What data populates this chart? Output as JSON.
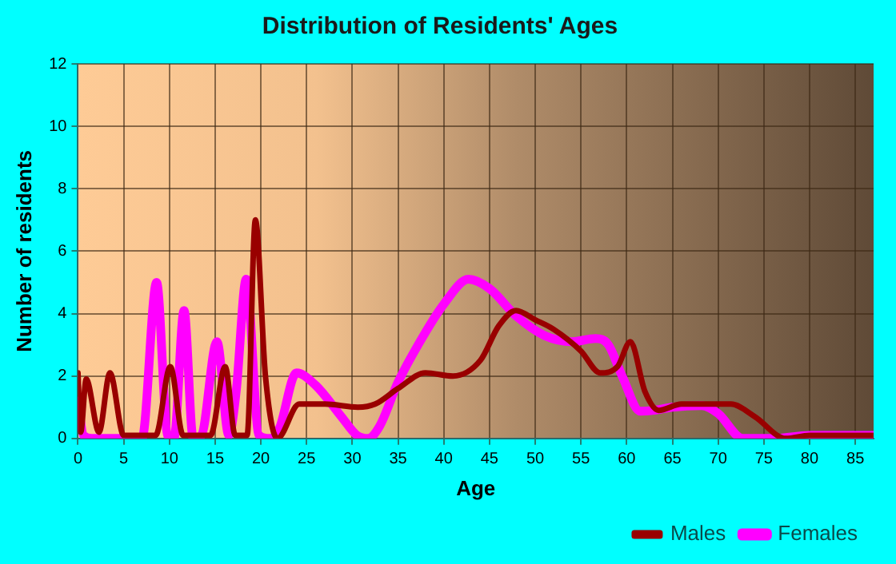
{
  "chart_data": {
    "type": "line",
    "title": "Distribution of Residents' Ages",
    "xlabel": "Age",
    "ylabel": "Number of residents",
    "xlim": [
      0,
      87
    ],
    "xticks": [
      0,
      5,
      10,
      15,
      20,
      25,
      30,
      35,
      40,
      45,
      50,
      55,
      60,
      65,
      70,
      75,
      80,
      85
    ],
    "ylim": [
      0,
      12
    ],
    "yticks": [
      0,
      2,
      4,
      6,
      8,
      10,
      12
    ],
    "grid": true,
    "legend": "bottom right",
    "marker": "none",
    "line_style": "solid",
    "series": [
      {
        "name": "Males",
        "color": "#990000",
        "x": [
          0,
          0.3,
          0.9,
          2.3,
          3.5,
          5,
          7,
          8.5,
          10.1,
          11.5,
          13,
          14.5,
          16.1,
          17.2,
          18.5,
          19.4,
          20.5,
          21.8,
          24.2,
          27,
          30.6,
          32.5,
          35,
          38,
          41,
          44,
          46,
          47.9,
          50,
          52,
          55,
          57.1,
          59,
          60.4,
          62,
          63.5,
          66,
          69,
          71.4,
          74,
          77.4,
          80,
          87
        ],
        "values": [
          2.1,
          0.2,
          1.9,
          0.2,
          2.1,
          0.1,
          0.1,
          0.1,
          2.3,
          0.1,
          0.1,
          0.1,
          2.3,
          0.1,
          0.1,
          7,
          2,
          0,
          1.1,
          1.1,
          1,
          1.1,
          1.6,
          2.1,
          2,
          2.5,
          3.6,
          4.1,
          3.8,
          3.5,
          2.8,
          2.1,
          2.3,
          3.1,
          1.5,
          0.9,
          1.1,
          1.1,
          1.1,
          0.7,
          0,
          0.1,
          0.1
        ]
      },
      {
        "name": "Females",
        "color": "#ff00ff",
        "x": [
          0,
          0.6,
          1.5,
          5,
          7,
          8.6,
          9.8,
          10.5,
          11.6,
          12.6,
          13.5,
          15.2,
          16.5,
          17.3,
          18.4,
          19.8,
          21,
          22,
          23.9,
          26,
          28.8,
          30.5,
          31.7,
          33,
          35,
          38,
          40,
          42.7,
          45,
          48,
          51,
          54,
          56.6,
          58,
          59.5,
          61.5,
          63,
          65,
          68.2,
          70,
          72.7,
          76,
          80,
          87
        ],
        "values": [
          1.2,
          0.1,
          0,
          0,
          0,
          5,
          0.1,
          0,
          4.1,
          0,
          0.1,
          3.1,
          0.1,
          1.5,
          5.1,
          0.1,
          0,
          0.3,
          2.1,
          1.7,
          0.7,
          0.1,
          0,
          0.4,
          1.8,
          3.4,
          4.3,
          5.1,
          4.8,
          3.9,
          3.3,
          3.1,
          3.2,
          3,
          2,
          0.87,
          0.9,
          1,
          1.05,
          0.8,
          0,
          0,
          0.1,
          0.1
        ]
      }
    ]
  }
}
